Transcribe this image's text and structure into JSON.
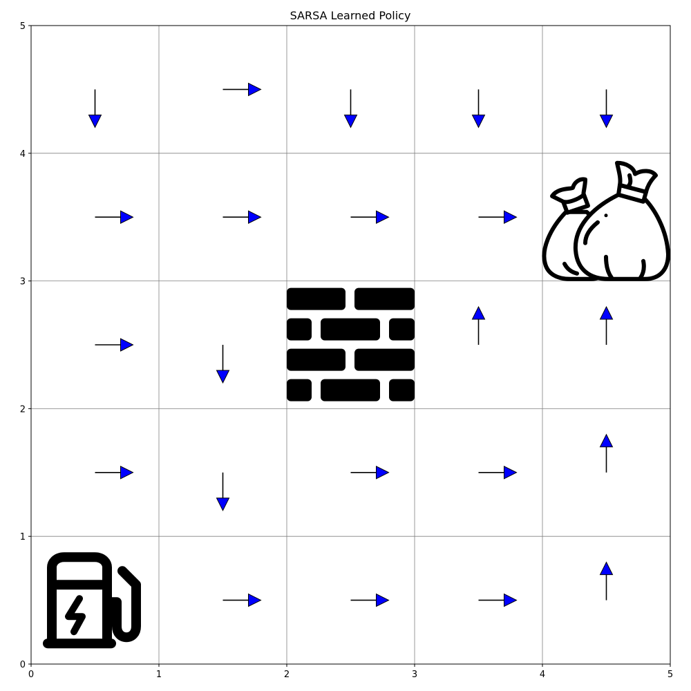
{
  "chart_data": {
    "type": "policy-grid",
    "title": "SARSA Learned Policy",
    "xlabel": "",
    "ylabel": "",
    "xlim": [
      0,
      5
    ],
    "ylim": [
      0,
      5
    ],
    "x_ticks": [
      "0",
      "1",
      "2",
      "3",
      "4",
      "5"
    ],
    "y_ticks": [
      "0",
      "1",
      "2",
      "3",
      "4",
      "5"
    ],
    "grid": true,
    "arrow_color": "#0000ff",
    "grid_color": "#808080",
    "policy": [
      {
        "x": 0,
        "y": 4,
        "action": "down"
      },
      {
        "x": 1,
        "y": 4,
        "action": "right"
      },
      {
        "x": 2,
        "y": 4,
        "action": "down"
      },
      {
        "x": 3,
        "y": 4,
        "action": "down"
      },
      {
        "x": 4,
        "y": 4,
        "action": "down"
      },
      {
        "x": 0,
        "y": 3,
        "action": "right"
      },
      {
        "x": 1,
        "y": 3,
        "action": "right"
      },
      {
        "x": 2,
        "y": 3,
        "action": "right"
      },
      {
        "x": 3,
        "y": 3,
        "action": "right"
      },
      {
        "x": 0,
        "y": 2,
        "action": "right"
      },
      {
        "x": 1,
        "y": 2,
        "action": "down"
      },
      {
        "x": 3,
        "y": 2,
        "action": "up"
      },
      {
        "x": 4,
        "y": 2,
        "action": "up"
      },
      {
        "x": 0,
        "y": 1,
        "action": "right"
      },
      {
        "x": 1,
        "y": 1,
        "action": "down"
      },
      {
        "x": 2,
        "y": 1,
        "action": "right"
      },
      {
        "x": 3,
        "y": 1,
        "action": "right"
      },
      {
        "x": 4,
        "y": 1,
        "action": "up"
      },
      {
        "x": 1,
        "y": 0,
        "action": "right"
      },
      {
        "x": 2,
        "y": 0,
        "action": "right"
      },
      {
        "x": 3,
        "y": 0,
        "action": "right"
      },
      {
        "x": 4,
        "y": 0,
        "action": "up"
      }
    ],
    "special_cells": [
      {
        "x": 4,
        "y": 3,
        "icon": "money-bags-icon"
      },
      {
        "x": 2,
        "y": 2,
        "icon": "brick-wall-icon"
      },
      {
        "x": 0,
        "y": 0,
        "icon": "charging-station-icon"
      }
    ]
  }
}
